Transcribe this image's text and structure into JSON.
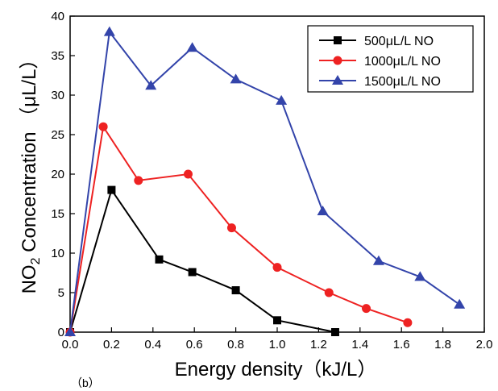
{
  "panel_label": "（b）",
  "chart_data": {
    "type": "line",
    "xlabel": "Energy density（kJ/L）",
    "ylabel": "NO",
    "ylabel_sub": "2",
    "ylabel_rest": " Concentration （μL/L）",
    "xlim": [
      0.0,
      2.0
    ],
    "ylim": [
      0,
      40
    ],
    "xticks": [
      "0.0",
      "0.2",
      "0.4",
      "0.6",
      "0.8",
      "1.0",
      "1.2",
      "1.4",
      "1.6",
      "1.8",
      "2.0"
    ],
    "yticks": [
      "0",
      "5",
      "10",
      "15",
      "20",
      "25",
      "30",
      "35",
      "40"
    ],
    "grid": false,
    "legend_position": "top-right",
    "series": [
      {
        "name": "500μL/L NO",
        "color": "#000000",
        "marker": "square",
        "x": [
          0.0,
          0.2,
          0.43,
          0.59,
          0.8,
          1.0,
          1.28
        ],
        "y": [
          0.0,
          18.0,
          9.2,
          7.6,
          5.3,
          1.5,
          0.0
        ]
      },
      {
        "name": "1000μL/L NO",
        "color": "#ee2222",
        "marker": "circle",
        "x": [
          0.0,
          0.16,
          0.33,
          0.57,
          0.78,
          1.0,
          1.25,
          1.43,
          1.63
        ],
        "y": [
          0.0,
          26.0,
          19.2,
          20.0,
          13.2,
          8.2,
          5.0,
          3.0,
          1.2
        ]
      },
      {
        "name": "1500μL/L NO",
        "color": "#3344aa",
        "marker": "triangle",
        "x": [
          0.0,
          0.19,
          0.39,
          0.59,
          0.8,
          1.02,
          1.22,
          1.49,
          1.69,
          1.88
        ],
        "y": [
          0.0,
          38.0,
          31.2,
          36.0,
          32.0,
          29.3,
          15.3,
          9.0,
          7.0,
          3.5
        ]
      }
    ]
  }
}
